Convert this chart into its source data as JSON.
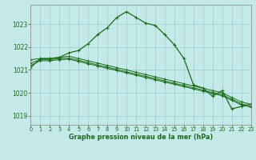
{
  "title": "Graphe pression niveau de la mer (hPa)",
  "bg_color": "#c5e8e8",
  "grid_color": "#9ecece",
  "line_color": "#1a6b1a",
  "xlim": [
    0,
    23
  ],
  "ylim": [
    1018.6,
    1023.85
  ],
  "yticks": [
    1019,
    1020,
    1021,
    1022,
    1023
  ],
  "xticks": [
    0,
    1,
    2,
    3,
    4,
    5,
    6,
    7,
    8,
    9,
    10,
    11,
    12,
    13,
    14,
    15,
    16,
    17,
    18,
    19,
    20,
    21,
    22,
    23
  ],
  "series_main": [
    1021.1,
    1021.5,
    1021.5,
    1021.55,
    1021.75,
    1021.85,
    1022.15,
    1022.55,
    1022.85,
    1023.3,
    1023.55,
    1023.3,
    1023.05,
    1022.95,
    1022.55,
    1022.1,
    1021.5,
    1020.35,
    1020.2,
    1019.85,
    1020.1,
    1019.3,
    1019.4,
    1019.5
  ],
  "series_flat1": [
    1021.45,
    1021.5,
    1021.5,
    1021.55,
    1021.6,
    1021.5,
    1021.4,
    1021.3,
    1021.2,
    1021.1,
    1021.0,
    1020.9,
    1020.8,
    1020.7,
    1020.6,
    1020.5,
    1020.4,
    1020.3,
    1020.2,
    1020.1,
    1020.0,
    1019.8,
    1019.6,
    1019.5
  ],
  "series_flat2": [
    1021.3,
    1021.45,
    1021.45,
    1021.5,
    1021.52,
    1021.42,
    1021.32,
    1021.22,
    1021.12,
    1021.02,
    1020.92,
    1020.82,
    1020.72,
    1020.62,
    1020.52,
    1020.42,
    1020.32,
    1020.22,
    1020.12,
    1020.02,
    1019.92,
    1019.72,
    1019.52,
    1019.42
  ],
  "series_flat3": [
    1021.2,
    1021.4,
    1021.4,
    1021.45,
    1021.47,
    1021.37,
    1021.27,
    1021.17,
    1021.07,
    1020.97,
    1020.87,
    1020.77,
    1020.67,
    1020.57,
    1020.47,
    1020.37,
    1020.27,
    1020.17,
    1020.07,
    1019.97,
    1019.87,
    1019.67,
    1019.47,
    1019.37
  ]
}
